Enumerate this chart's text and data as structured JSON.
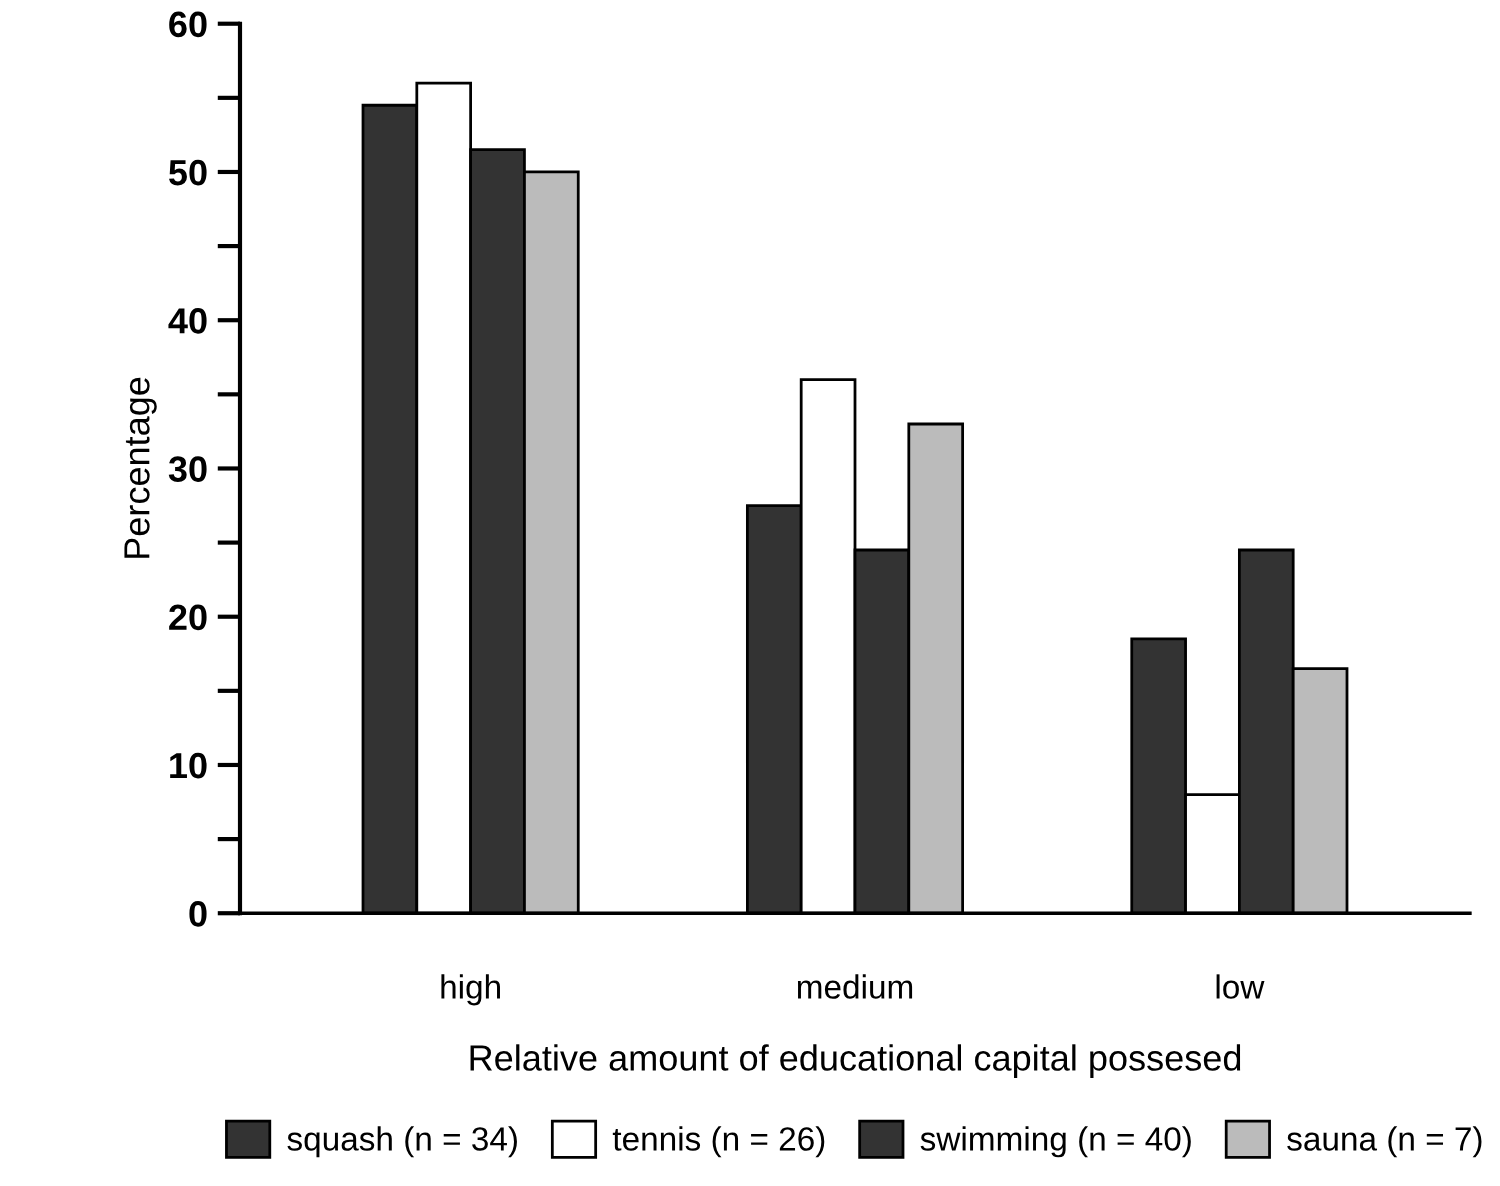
{
  "chart_data": {
    "type": "bar",
    "xlabel": "Relative amount of educational capital possesed",
    "ylabel": "Percentage",
    "categories": [
      "high",
      "medium",
      "low"
    ],
    "series": [
      {
        "name": "squash (n = 34)",
        "color": "#333333",
        "values": [
          54.5,
          27.5,
          18.5
        ]
      },
      {
        "name": "tennis (n = 26)",
        "color": "#ffffff",
        "values": [
          56,
          36,
          8
        ]
      },
      {
        "name": "swimming (n = 40)",
        "color": "#333333",
        "values": [
          51.5,
          24.5,
          24.5
        ]
      },
      {
        "name": "sauna (n = 7)",
        "color": "#bbbbbb",
        "values": [
          50,
          33,
          16.5
        ]
      }
    ],
    "ylim": [
      0,
      60
    ],
    "yticks": [
      0,
      {
        "value": 5,
        "label": null
      },
      10,
      {
        "value": 15,
        "label": null
      },
      20,
      {
        "value": 25,
        "label": null
      },
      30,
      {
        "value": 35,
        "label": null
      },
      40,
      {
        "value": 45,
        "label": null
      },
      50,
      {
        "value": 55,
        "label": null
      },
      60
    ],
    "grid": false,
    "legend": "bottom"
  }
}
